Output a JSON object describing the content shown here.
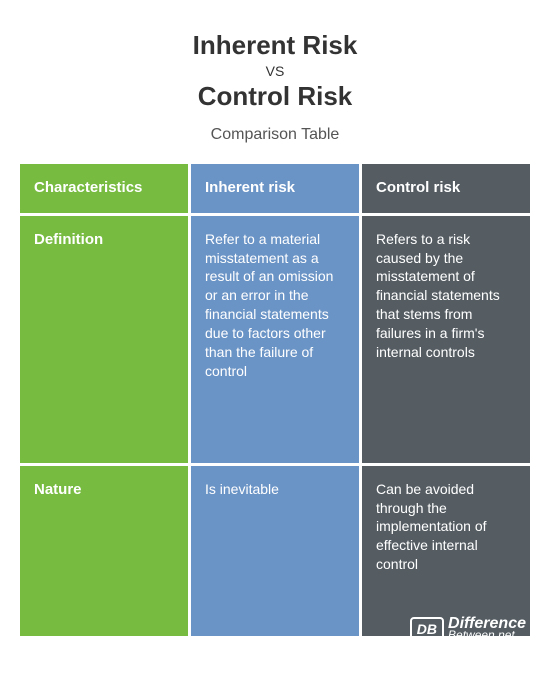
{
  "header": {
    "title_top": "Inherent Risk",
    "vs": "vs",
    "title_bottom": "Control Risk",
    "subtitle": "Comparison Table"
  },
  "columns": {
    "characteristics": {
      "header": "Characteristics",
      "definition_label": "Definition",
      "nature_label": "Nature",
      "color": "#78bb41"
    },
    "inherent": {
      "header": "Inherent risk",
      "definition": "Refer to a material misstatement as a result of an omission or an error in the financial statements due to factors other than the failure of control",
      "nature": "Is inevitable",
      "color": "#6b94c6"
    },
    "control": {
      "header": "Control risk",
      "definition": "Refers to a risk caused by the misstatement of financial statements that stems from failures in a firm's internal controls",
      "nature": "Can be avoided through the implementation of effective internal control",
      "color": "#555d63"
    }
  },
  "logo": {
    "box": "DB",
    "line1": "Difference",
    "line2": "Between.net"
  },
  "styling": {
    "background_color": "#ffffff",
    "gap_color": "#ffffff",
    "text_color": "#ffffff",
    "header_text_color": "#333333",
    "subtitle_color": "#555555",
    "cell_gap": 3,
    "title_fontsize": 26,
    "subtitle_fontsize": 16,
    "cell_fontsize": 14,
    "header_cell_fontsize": 15
  }
}
